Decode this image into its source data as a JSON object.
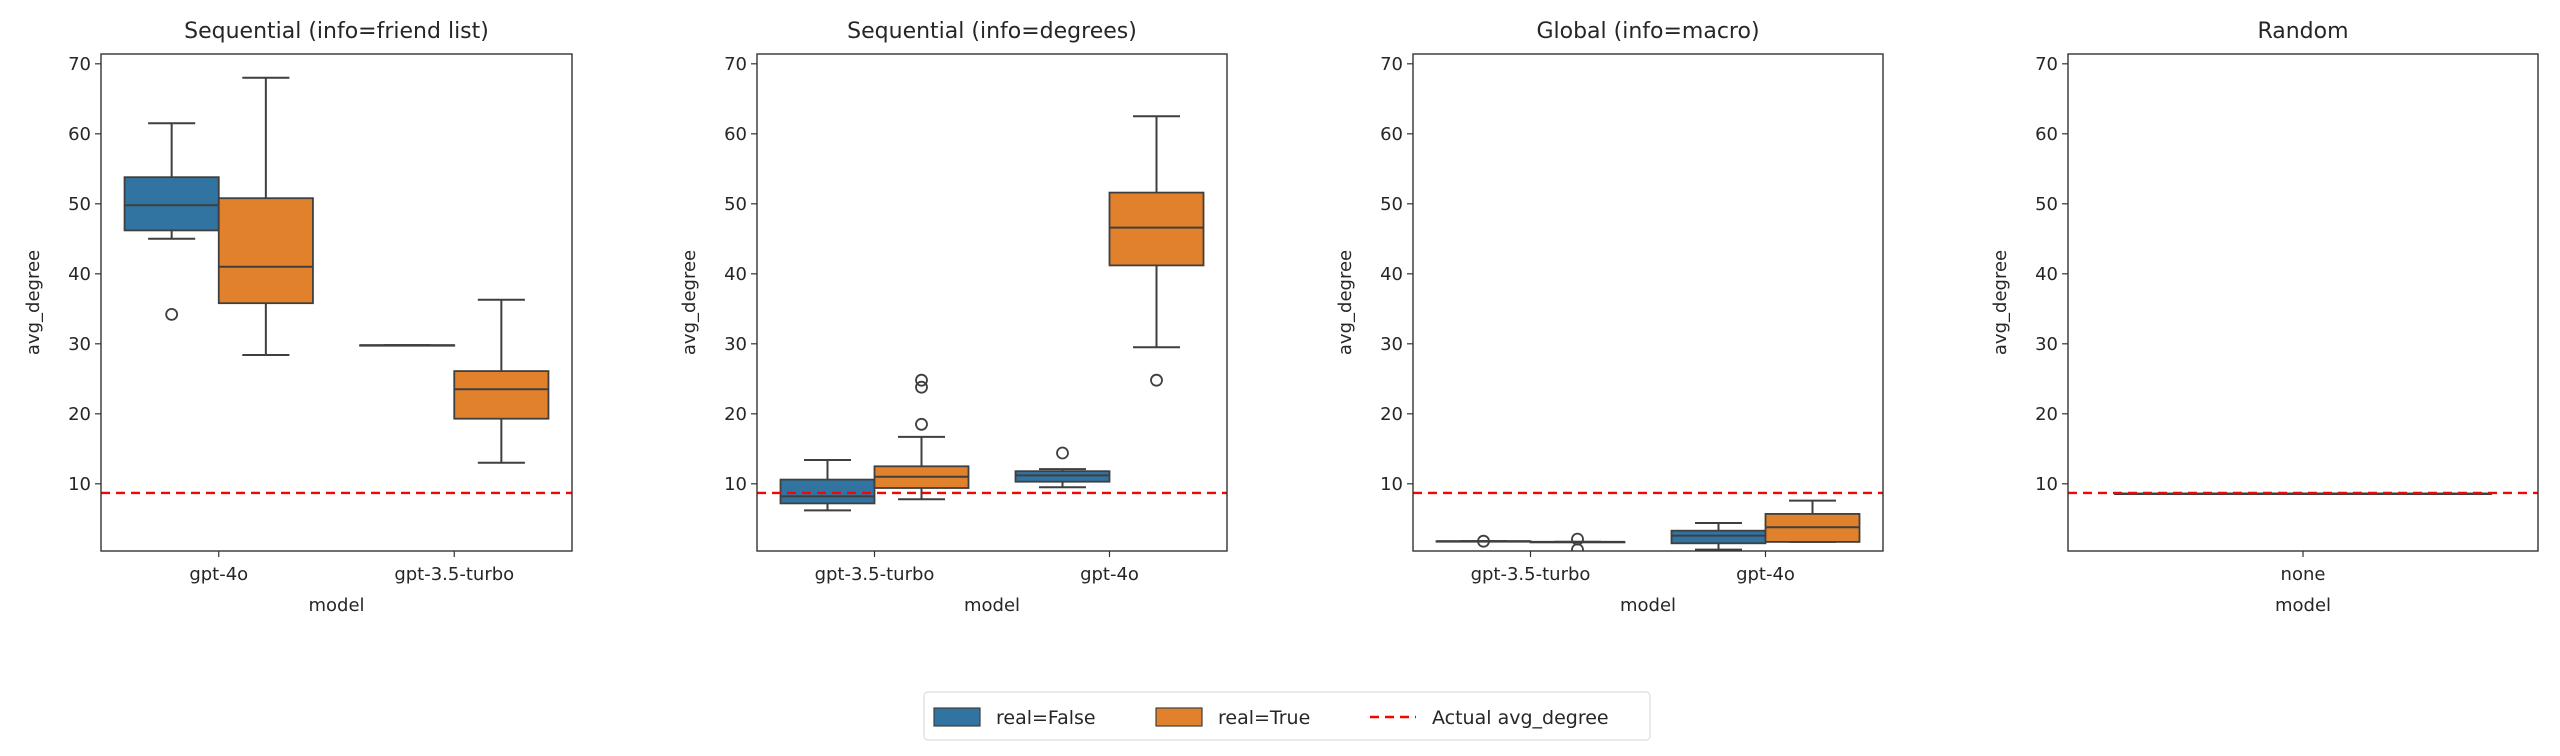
{
  "colors": {
    "real_false": "#3274a1",
    "real_true": "#e1812c",
    "actual_line": "#ff0000",
    "box_edge": "#3f3f3f"
  },
  "legend": {
    "items": [
      {
        "label": "real=False",
        "type": "patch",
        "color": "#3274a1"
      },
      {
        "label": "real=True",
        "type": "patch",
        "color": "#e1812c"
      },
      {
        "label": "Actual avg_degree",
        "type": "dashed-line",
        "color": "#ff0000"
      }
    ],
    "placement": "bottom-center"
  },
  "chart_data": [
    {
      "type": "box",
      "title": "Sequential (info=friend list)",
      "xlabel": "model",
      "ylabel": "avg_degree",
      "ylim": [
        0.4,
        71.4
      ],
      "yticks": [
        10,
        20,
        30,
        40,
        50,
        60,
        70
      ],
      "categories": [
        "gpt-4o",
        "gpt-3.5-turbo"
      ],
      "actual_avg_degree": 8.7,
      "boxes": [
        {
          "category": "gpt-4o",
          "hue": "real=False",
          "whislo": 45,
          "q1": 46.2,
          "med": 49.8,
          "q3": 53.8,
          "whishi": 61.5,
          "fliers": [
            34.2
          ]
        },
        {
          "category": "gpt-4o",
          "hue": "real=True",
          "whislo": 28.4,
          "q1": 35.8,
          "med": 41,
          "q3": 50.8,
          "whishi": 68,
          "fliers": []
        },
        {
          "category": "gpt-3.5-turbo",
          "hue": "real=False",
          "whislo": 29.8,
          "q1": 29.8,
          "med": 29.8,
          "q3": 29.8,
          "whishi": 29.8,
          "fliers": []
        },
        {
          "category": "gpt-3.5-turbo",
          "hue": "real=True",
          "whislo": 13,
          "q1": 19.3,
          "med": 23.5,
          "q3": 26.1,
          "whishi": 36.3,
          "fliers": []
        }
      ]
    },
    {
      "type": "box",
      "title": "Sequential (info=degrees)",
      "xlabel": "model",
      "ylabel": "avg_degree",
      "ylim": [
        0.4,
        71.4
      ],
      "yticks": [
        10,
        20,
        30,
        40,
        50,
        60,
        70
      ],
      "categories": [
        "gpt-3.5-turbo",
        "gpt-4o"
      ],
      "actual_avg_degree": 8.7,
      "boxes": [
        {
          "category": "gpt-3.5-turbo",
          "hue": "real=False",
          "whislo": 6.2,
          "q1": 7.2,
          "med": 8.2,
          "q3": 10.6,
          "whishi": 13.4,
          "fliers": []
        },
        {
          "category": "gpt-3.5-turbo",
          "hue": "real=True",
          "whislo": 7.8,
          "q1": 9.4,
          "med": 11,
          "q3": 12.5,
          "whishi": 16.7,
          "fliers": [
            18.5,
            23.8,
            24.8
          ]
        },
        {
          "category": "gpt-4o",
          "hue": "real=False",
          "whislo": 9.5,
          "q1": 10.3,
          "med": 11.2,
          "q3": 11.8,
          "whishi": 12.1,
          "fliers": [
            14.4
          ]
        },
        {
          "category": "gpt-4o",
          "hue": "real=True",
          "whislo": 29.5,
          "q1": 41.2,
          "med": 46.6,
          "q3": 51.6,
          "whishi": 62.5,
          "fliers": [
            24.8
          ]
        }
      ]
    },
    {
      "type": "box",
      "title": "Global (info=macro)",
      "xlabel": "model",
      "ylabel": "avg_degree",
      "ylim": [
        0.4,
        71.4
      ],
      "yticks": [
        10,
        20,
        30,
        40,
        50,
        60,
        70
      ],
      "categories": [
        "gpt-3.5-turbo",
        "gpt-4o"
      ],
      "actual_avg_degree": 8.7,
      "boxes": [
        {
          "category": "gpt-3.5-turbo",
          "hue": "real=False",
          "whislo": 1.8,
          "q1": 1.8,
          "med": 1.8,
          "q3": 1.8,
          "whishi": 1.8,
          "fliers": [
            1.8
          ]
        },
        {
          "category": "gpt-3.5-turbo",
          "hue": "real=True",
          "whislo": 1.7,
          "q1": 1.7,
          "med": 1.7,
          "q3": 1.7,
          "whishi": 1.7,
          "fliers": [
            2.1,
            0.6
          ]
        },
        {
          "category": "gpt-4o",
          "hue": "real=False",
          "whislo": 0.6,
          "q1": 1.5,
          "med": 2.6,
          "q3": 3.3,
          "whishi": 4.4,
          "fliers": []
        },
        {
          "category": "gpt-4o",
          "hue": "real=True",
          "whislo": 1.7,
          "q1": 1.7,
          "med": 3.8,
          "q3": 5.7,
          "whishi": 7.6,
          "fliers": []
        }
      ]
    },
    {
      "type": "box",
      "title": "Random",
      "xlabel": "model",
      "ylabel": "avg_degree",
      "ylim": [
        0.4,
        71.4
      ],
      "yticks": [
        10,
        20,
        30,
        40,
        50,
        60,
        70
      ],
      "categories": [
        "none"
      ],
      "actual_avg_degree": 8.7,
      "boxes": [
        {
          "category": "none",
          "hue": "none",
          "whislo": 8.6,
          "q1": 8.6,
          "med": 8.6,
          "q3": 8.6,
          "whishi": 8.6,
          "fliers": []
        }
      ]
    }
  ]
}
